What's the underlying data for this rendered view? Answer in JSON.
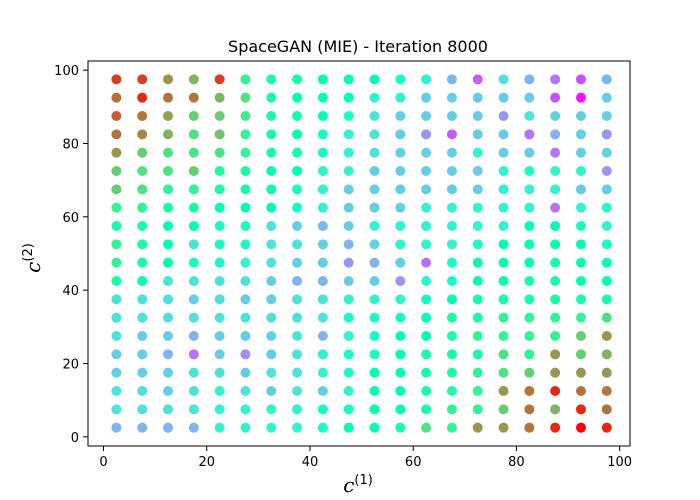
{
  "chart_data": {
    "type": "scatter",
    "title": "SpaceGAN (MIE) - Iteration 8000",
    "xlabel": "c",
    "xlabel_sup": "(1)",
    "ylabel": "c",
    "ylabel_sup": "(2)",
    "xlim": [
      -3,
      102
    ],
    "ylim": [
      -2.5,
      102.5
    ],
    "xticks": [
      0,
      20,
      40,
      60,
      80,
      100
    ],
    "yticks": [
      0,
      20,
      40,
      60,
      80,
      100
    ],
    "grid": false,
    "colormap": "rainbow",
    "x_values": [
      2.5,
      7.5,
      12.5,
      17.5,
      22.5,
      27.5,
      32.5,
      37.5,
      42.5,
      47.5,
      52.5,
      57.5,
      62.5,
      67.5,
      72.5,
      77.5,
      82.5,
      87.5,
      92.5,
      97.5
    ],
    "y_values": [
      97.5,
      92.5,
      87.5,
      82.5,
      77.5,
      72.5,
      67.5,
      62.5,
      57.5,
      52.5,
      47.5,
      42.5,
      37.5,
      32.5,
      27.5,
      22.5,
      17.5,
      12.5,
      7.5,
      2.5
    ],
    "values_note": "color value per grid cell, rows from top (y=97.5) to bottom (y=2.5), columns left to right; 0=purple, 1=red",
    "grid_values": [
      [
        0.92,
        0.92,
        0.8,
        0.75,
        0.92,
        0.6,
        0.55,
        0.55,
        0.5,
        0.5,
        0.5,
        0.45,
        0.4,
        0.25,
        0.12,
        0.35,
        0.25,
        0.15,
        0.1,
        0.25
      ],
      [
        0.85,
        0.95,
        0.85,
        0.85,
        0.75,
        0.65,
        0.55,
        0.5,
        0.5,
        0.5,
        0.4,
        0.4,
        0.3,
        0.3,
        0.3,
        0.3,
        0.3,
        0.1,
        0.02,
        0.3
      ],
      [
        0.88,
        0.85,
        0.78,
        0.7,
        0.7,
        0.62,
        0.55,
        0.55,
        0.5,
        0.45,
        0.35,
        0.3,
        0.3,
        0.3,
        0.3,
        0.2,
        0.35,
        0.3,
        0.3,
        0.3
      ],
      [
        0.85,
        0.82,
        0.75,
        0.65,
        0.72,
        0.6,
        0.55,
        0.5,
        0.45,
        0.4,
        0.35,
        0.3,
        0.2,
        0.12,
        0.3,
        0.3,
        0.15,
        0.25,
        0.3,
        0.2
      ],
      [
        0.8,
        0.7,
        0.65,
        0.65,
        0.65,
        0.6,
        0.55,
        0.55,
        0.45,
        0.4,
        0.35,
        0.3,
        0.3,
        0.3,
        0.4,
        0.3,
        0.3,
        0.15,
        0.3,
        0.3
      ],
      [
        0.7,
        0.65,
        0.65,
        0.7,
        0.55,
        0.55,
        0.5,
        0.5,
        0.4,
        0.4,
        0.3,
        0.3,
        0.3,
        0.3,
        0.3,
        0.4,
        0.45,
        0.4,
        0.4,
        0.2
      ],
      [
        0.7,
        0.65,
        0.6,
        0.6,
        0.55,
        0.55,
        0.5,
        0.45,
        0.4,
        0.3,
        0.3,
        0.3,
        0.3,
        0.3,
        0.3,
        0.4,
        0.4,
        0.4,
        0.3,
        0.3
      ],
      [
        0.6,
        0.6,
        0.55,
        0.55,
        0.5,
        0.5,
        0.5,
        0.45,
        0.4,
        0.3,
        0.3,
        0.3,
        0.4,
        0.4,
        0.4,
        0.4,
        0.4,
        0.15,
        0.4,
        0.4
      ],
      [
        0.55,
        0.55,
        0.5,
        0.5,
        0.45,
        0.45,
        0.35,
        0.3,
        0.25,
        0.3,
        0.4,
        0.4,
        0.4,
        0.4,
        0.4,
        0.4,
        0.5,
        0.5,
        0.45,
        0.4
      ],
      [
        0.6,
        0.55,
        0.5,
        0.35,
        0.45,
        0.45,
        0.35,
        0.35,
        0.3,
        0.25,
        0.3,
        0.4,
        0.4,
        0.4,
        0.45,
        0.5,
        0.5,
        0.5,
        0.5,
        0.45
      ],
      [
        0.6,
        0.55,
        0.5,
        0.45,
        0.45,
        0.4,
        0.35,
        0.3,
        0.3,
        0.2,
        0.25,
        0.3,
        0.15,
        0.45,
        0.5,
        0.5,
        0.5,
        0.55,
        0.5,
        0.5
      ],
      [
        0.55,
        0.5,
        0.35,
        0.35,
        0.35,
        0.35,
        0.3,
        0.25,
        0.25,
        0.3,
        0.3,
        0.2,
        0.4,
        0.45,
        0.5,
        0.5,
        0.55,
        0.55,
        0.5,
        0.5
      ],
      [
        0.35,
        0.35,
        0.35,
        0.3,
        0.35,
        0.3,
        0.3,
        0.35,
        0.35,
        0.4,
        0.4,
        0.4,
        0.45,
        0.5,
        0.55,
        0.55,
        0.55,
        0.55,
        0.55,
        0.55
      ],
      [
        0.35,
        0.35,
        0.35,
        0.35,
        0.35,
        0.35,
        0.35,
        0.35,
        0.35,
        0.45,
        0.45,
        0.45,
        0.5,
        0.55,
        0.55,
        0.6,
        0.6,
        0.6,
        0.6,
        0.65
      ],
      [
        0.35,
        0.3,
        0.3,
        0.25,
        0.3,
        0.3,
        0.3,
        0.35,
        0.25,
        0.4,
        0.45,
        0.5,
        0.5,
        0.55,
        0.6,
        0.6,
        0.6,
        0.6,
        0.7,
        0.8
      ],
      [
        0.3,
        0.3,
        0.25,
        0.15,
        0.3,
        0.2,
        0.3,
        0.35,
        0.4,
        0.45,
        0.45,
        0.5,
        0.55,
        0.55,
        0.55,
        0.65,
        0.6,
        0.8,
        0.7,
        0.75
      ],
      [
        0.3,
        0.3,
        0.3,
        0.35,
        0.35,
        0.3,
        0.35,
        0.35,
        0.4,
        0.45,
        0.5,
        0.5,
        0.55,
        0.55,
        0.6,
        0.65,
        0.7,
        0.8,
        0.8,
        0.8
      ],
      [
        0.35,
        0.35,
        0.3,
        0.35,
        0.4,
        0.35,
        0.3,
        0.35,
        0.3,
        0.4,
        0.5,
        0.5,
        0.55,
        0.55,
        0.6,
        0.8,
        0.85,
        0.95,
        0.85,
        0.85
      ],
      [
        0.35,
        0.35,
        0.35,
        0.35,
        0.4,
        0.4,
        0.4,
        0.4,
        0.45,
        0.45,
        0.5,
        0.5,
        0.55,
        0.6,
        0.6,
        0.7,
        0.85,
        0.75,
        0.95,
        0.85
      ],
      [
        0.25,
        0.25,
        0.25,
        0.25,
        0.4,
        0.4,
        0.4,
        0.4,
        0.45,
        0.5,
        0.5,
        0.55,
        0.65,
        0.6,
        0.8,
        0.8,
        0.85,
        0.95,
        1.0,
        0.95
      ]
    ]
  }
}
